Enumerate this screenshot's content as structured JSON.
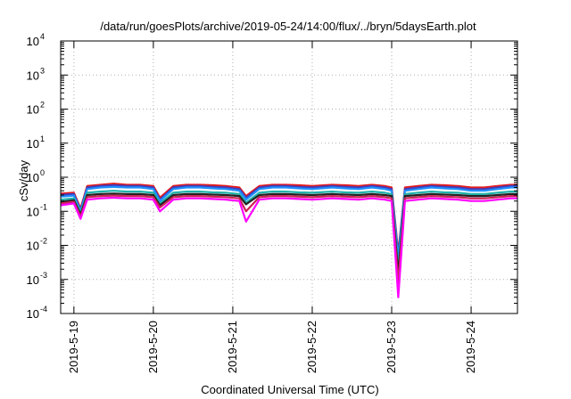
{
  "chart_data": {
    "type": "line",
    "title": "/data/run/goesPlots/archive/2019-05-24/14:00/flux/../bryn/5daysEarth.plot",
    "xlabel": "Coordinated Universal Time (UTC)",
    "ylabel": "cSv/day",
    "y_scale": "log",
    "ylim": [
      0.0001,
      10000
    ],
    "xlim": [
      "2019-05-18 20:00",
      "2019-05-24 14:00"
    ],
    "grid": true,
    "x_ticks": [
      {
        "date": "2019-05-19 00:00",
        "label": "2019-5-19"
      },
      {
        "date": "2019-05-20 00:00",
        "label": "2019-5-20"
      },
      {
        "date": "2019-05-21 00:00",
        "label": "2019-5-21"
      },
      {
        "date": "2019-05-22 00:00",
        "label": "2019-5-22"
      },
      {
        "date": "2019-05-23 00:00",
        "label": "2019-5-23"
      },
      {
        "date": "2019-05-24 00:00",
        "label": "2019-5-24"
      }
    ],
    "y_ticks": [
      {
        "value": 0.0001,
        "base": "10",
        "exp": "-4"
      },
      {
        "value": 0.001,
        "base": "10",
        "exp": "-3"
      },
      {
        "value": 0.01,
        "base": "10",
        "exp": "-2"
      },
      {
        "value": 0.1,
        "base": "10",
        "exp": "-1"
      },
      {
        "value": 1,
        "base": "10",
        "exp": "0"
      },
      {
        "value": 10,
        "base": "10",
        "exp": "1"
      },
      {
        "value": 100,
        "base": "10",
        "exp": "2"
      },
      {
        "value": 1000,
        "base": "10",
        "exp": "3"
      },
      {
        "value": 10000,
        "base": "10",
        "exp": "4"
      }
    ],
    "x": [
      "2019-05-18 20:00",
      "2019-05-19 00:00",
      "2019-05-19 02:00",
      "2019-05-19 04:00",
      "2019-05-19 08:00",
      "2019-05-19 12:00",
      "2019-05-19 16:00",
      "2019-05-19 20:00",
      "2019-05-20 00:00",
      "2019-05-20 02:00",
      "2019-05-20 06:00",
      "2019-05-20 10:00",
      "2019-05-20 14:00",
      "2019-05-20 18:00",
      "2019-05-20 22:00",
      "2019-05-21 02:00",
      "2019-05-21 04:00",
      "2019-05-21 08:00",
      "2019-05-21 12:00",
      "2019-05-21 16:00",
      "2019-05-21 20:00",
      "2019-05-22 00:00",
      "2019-05-22 06:00",
      "2019-05-22 10:00",
      "2019-05-22 14:00",
      "2019-05-22 18:00",
      "2019-05-22 22:00",
      "2019-05-23 00:00",
      "2019-05-23 02:00",
      "2019-05-23 04:00",
      "2019-05-23 08:00",
      "2019-05-23 12:00",
      "2019-05-23 16:00",
      "2019-05-23 20:00",
      "2019-05-24 00:00",
      "2019-05-24 04:00",
      "2019-05-24 08:00",
      "2019-05-24 12:00",
      "2019-05-24 14:00"
    ],
    "series": [
      {
        "color": "#e41a1c",
        "values": [
          0.33,
          0.35,
          0.12,
          0.55,
          0.6,
          0.65,
          0.6,
          0.6,
          0.55,
          0.25,
          0.55,
          0.6,
          0.6,
          0.58,
          0.55,
          0.5,
          0.28,
          0.55,
          0.6,
          0.6,
          0.58,
          0.55,
          0.6,
          0.58,
          0.55,
          0.6,
          0.55,
          0.5,
          0.006,
          0.5,
          0.55,
          0.6,
          0.58,
          0.55,
          0.5,
          0.5,
          0.55,
          0.6,
          0.6
        ]
      },
      {
        "color": "#3f3fbf",
        "values": [
          0.3,
          0.32,
          0.11,
          0.5,
          0.55,
          0.58,
          0.55,
          0.55,
          0.5,
          0.22,
          0.5,
          0.55,
          0.55,
          0.52,
          0.5,
          0.45,
          0.25,
          0.5,
          0.55,
          0.55,
          0.52,
          0.5,
          0.55,
          0.52,
          0.5,
          0.55,
          0.5,
          0.45,
          0.005,
          0.45,
          0.5,
          0.55,
          0.52,
          0.5,
          0.45,
          0.45,
          0.5,
          0.55,
          0.55
        ]
      },
      {
        "color": "#1e90ff",
        "values": [
          0.27,
          0.29,
          0.1,
          0.45,
          0.5,
          0.52,
          0.5,
          0.5,
          0.45,
          0.2,
          0.45,
          0.5,
          0.5,
          0.47,
          0.45,
          0.4,
          0.22,
          0.45,
          0.5,
          0.5,
          0.47,
          0.45,
          0.5,
          0.47,
          0.45,
          0.5,
          0.45,
          0.4,
          0.004,
          0.4,
          0.45,
          0.5,
          0.47,
          0.45,
          0.4,
          0.4,
          0.45,
          0.5,
          0.5
        ]
      },
      {
        "color": "#20b2aa",
        "values": [
          0.22,
          0.24,
          0.09,
          0.35,
          0.38,
          0.4,
          0.38,
          0.38,
          0.35,
          0.17,
          0.35,
          0.38,
          0.38,
          0.36,
          0.35,
          0.32,
          0.18,
          0.35,
          0.38,
          0.38,
          0.36,
          0.35,
          0.38,
          0.36,
          0.35,
          0.38,
          0.35,
          0.32,
          0.002,
          0.32,
          0.35,
          0.38,
          0.36,
          0.35,
          0.32,
          0.32,
          0.35,
          0.38,
          0.38
        ]
      },
      {
        "color": "#222222",
        "values": [
          0.19,
          0.21,
          0.08,
          0.3,
          0.32,
          0.33,
          0.32,
          0.32,
          0.3,
          0.15,
          0.3,
          0.32,
          0.32,
          0.31,
          0.3,
          0.28,
          0.16,
          0.3,
          0.32,
          0.32,
          0.31,
          0.3,
          0.32,
          0.31,
          0.3,
          0.32,
          0.3,
          0.28,
          0.0015,
          0.28,
          0.3,
          0.32,
          0.31,
          0.3,
          0.28,
          0.28,
          0.3,
          0.32,
          0.32
        ]
      },
      {
        "color": "#cc2255",
        "values": [
          0.17,
          0.19,
          0.07,
          0.26,
          0.28,
          0.29,
          0.28,
          0.28,
          0.26,
          0.13,
          0.26,
          0.28,
          0.28,
          0.27,
          0.26,
          0.24,
          0.1,
          0.26,
          0.28,
          0.28,
          0.27,
          0.26,
          0.28,
          0.27,
          0.26,
          0.28,
          0.26,
          0.24,
          0.0008,
          0.24,
          0.26,
          0.28,
          0.27,
          0.26,
          0.24,
          0.24,
          0.26,
          0.28,
          0.28
        ]
      },
      {
        "color": "#ff00ff",
        "values": [
          0.15,
          0.17,
          0.06,
          0.22,
          0.24,
          0.25,
          0.24,
          0.24,
          0.22,
          0.1,
          0.22,
          0.24,
          0.24,
          0.23,
          0.22,
          0.2,
          0.05,
          0.22,
          0.24,
          0.24,
          0.23,
          0.22,
          0.24,
          0.23,
          0.22,
          0.24,
          0.22,
          0.2,
          0.0003,
          0.2,
          0.22,
          0.24,
          0.23,
          0.22,
          0.2,
          0.2,
          0.22,
          0.24,
          0.24
        ]
      }
    ]
  }
}
